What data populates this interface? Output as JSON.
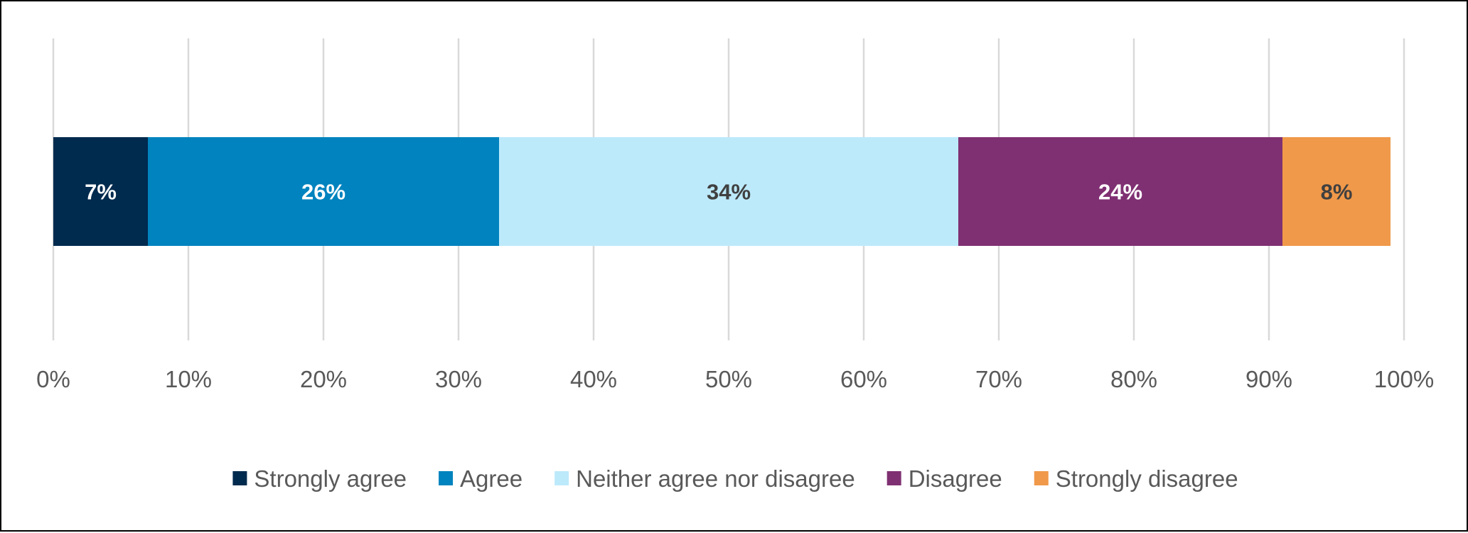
{
  "chart_data": {
    "type": "bar",
    "orientation": "horizontal",
    "stacked": true,
    "title": "",
    "xlabel": "",
    "ylabel": "",
    "categories": [
      ""
    ],
    "xlim": [
      0,
      100
    ],
    "x_ticks": [
      0,
      10,
      20,
      30,
      40,
      50,
      60,
      70,
      80,
      90,
      100
    ],
    "tick_labels": [
      "0%",
      "10%",
      "20%",
      "30%",
      "40%",
      "50%",
      "60%",
      "70%",
      "80%",
      "90%",
      "100%"
    ],
    "grid": true,
    "legend_position": "bottom",
    "series": [
      {
        "name": "Strongly agree",
        "values": [
          7
        ],
        "label": "7%",
        "color": "#002A4E",
        "label_color": "#FFFFFF"
      },
      {
        "name": "Agree",
        "values": [
          26
        ],
        "label": "26%",
        "color": "#0083BE",
        "label_color": "#FFFFFF"
      },
      {
        "name": "Neither agree nor disagree",
        "values": [
          34
        ],
        "label": "34%",
        "color": "#BDEAFB",
        "label_color": "#404040"
      },
      {
        "name": "Disagree",
        "values": [
          24
        ],
        "label": "24%",
        "color": "#7F3072",
        "label_color": "#FFFFFF"
      },
      {
        "name": "Strongly disagree",
        "values": [
          8
        ],
        "label": "8%",
        "color": "#F0994A",
        "label_color": "#404040"
      }
    ]
  }
}
